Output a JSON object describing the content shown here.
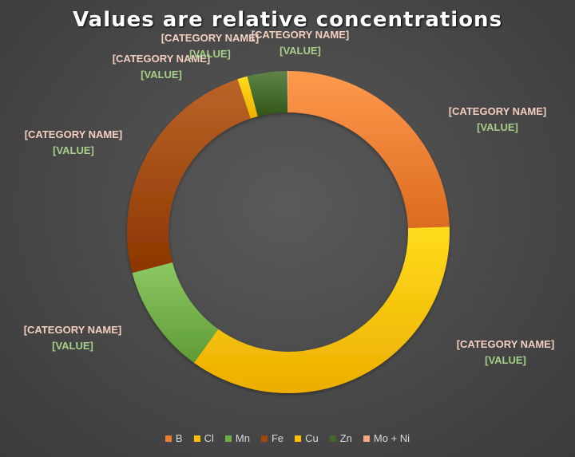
{
  "chart_data": {
    "type": "donut",
    "title": "Values are relative concentrations",
    "categories": [
      "B",
      "Cl",
      "Mn",
      "Fe",
      "Cu",
      "Zn",
      "Mo + Ni"
    ],
    "values": [
      24.5,
      35.5,
      11.0,
      24.0,
      1.0,
      4.0,
      0.1
    ],
    "colors": [
      "#ED7D31",
      "#FFC000",
      "#70AD47",
      "#9E480E",
      "#FFC000",
      "#43682B",
      "#F4A77A"
    ],
    "data_labels": {
      "name_text": "[CATEGORY NAME]",
      "value_text": "[VALUE]"
    },
    "legend_position": "bottom"
  }
}
